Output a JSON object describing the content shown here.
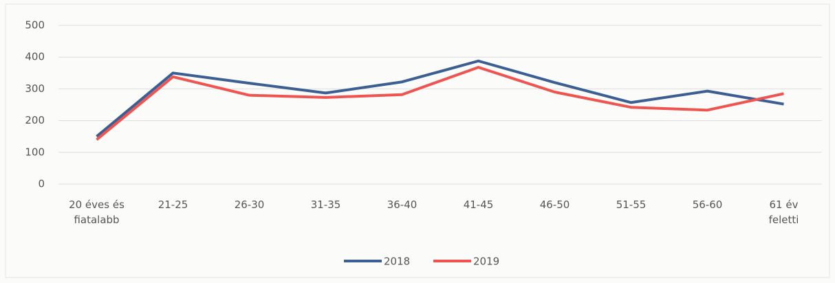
{
  "chart_data": {
    "type": "line",
    "categories": [
      "20 éves és\nfiatalabb",
      "21-25",
      "26-30",
      "31-35",
      "36-40",
      "41-45",
      "46-50",
      "51-55",
      "56-60",
      "61 év\nfeletti"
    ],
    "series": [
      {
        "name": "2018",
        "color": "#3b5f92",
        "values": [
          150,
          350,
          318,
          287,
          322,
          388,
          320,
          257,
          293,
          252
        ]
      },
      {
        "name": "2019",
        "color": "#ef5450",
        "values": [
          140,
          338,
          280,
          273,
          282,
          368,
          290,
          242,
          233,
          285
        ]
      }
    ],
    "ylim": [
      0,
      500
    ],
    "yticks": [
      0,
      100,
      200,
      300,
      400,
      500
    ],
    "grid": true,
    "legend": "bottom"
  }
}
